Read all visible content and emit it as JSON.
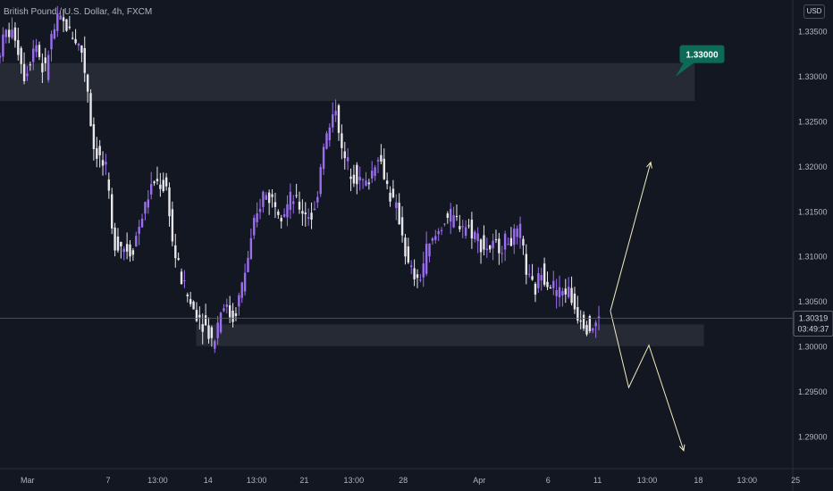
{
  "header": {
    "symbol": "British Pound / U.S. Dollar, 4h, FXCM",
    "currency": "USD"
  },
  "colors": {
    "background": "#131722",
    "up": "#9b6ef0",
    "down": "#e8e8ec",
    "zone": "#363a45",
    "projection": "#f0ecc0",
    "callout": "#0b6b56",
    "price_line": "#5d606b"
  },
  "chart_data": {
    "type": "candlestick",
    "title": "",
    "xlabel": "",
    "ylabel": "",
    "ylim": [
      1.2865,
      1.3385
    ],
    "x_range": [
      0,
      865
    ],
    "grid": false,
    "y_ticks": [
      {
        "v": 1.335,
        "label": "1.33500"
      },
      {
        "v": 1.33,
        "label": "1.33000"
      },
      {
        "v": 1.325,
        "label": "1.32500"
      },
      {
        "v": 1.32,
        "label": "1.32000"
      },
      {
        "v": 1.315,
        "label": "1.31500"
      },
      {
        "v": 1.31,
        "label": "1.31000"
      },
      {
        "v": 1.305,
        "label": "1.30500"
      },
      {
        "v": 1.3,
        "label": "1.30000"
      },
      {
        "v": 1.295,
        "label": "1.29500"
      },
      {
        "v": 1.29,
        "label": "1.29000"
      }
    ],
    "x_ticks": [
      {
        "t": 30,
        "label": "Mar"
      },
      {
        "t": 118,
        "label": "7"
      },
      {
        "t": 172,
        "label": "13:00"
      },
      {
        "t": 227,
        "label": "14"
      },
      {
        "t": 280,
        "label": "13:00"
      },
      {
        "t": 332,
        "label": "21"
      },
      {
        "t": 386,
        "label": "13:00"
      },
      {
        "t": 440,
        "label": "28"
      },
      {
        "t": 523,
        "label": "Apr"
      },
      {
        "t": 598,
        "label": "6"
      },
      {
        "t": 652,
        "label": "11"
      },
      {
        "t": 706,
        "label": "13:00"
      },
      {
        "t": 762,
        "label": "18"
      },
      {
        "t": 815,
        "label": "13:00"
      },
      {
        "t": 868,
        "label": "25"
      }
    ],
    "anchors": [
      [
        0,
        1.332,
        1.336
      ],
      [
        10,
        1.335,
        1.337
      ],
      [
        20,
        1.3345,
        1.3355
      ],
      [
        30,
        1.33,
        1.331
      ],
      [
        42,
        1.334,
        1.336
      ],
      [
        52,
        1.33,
        1.328
      ],
      [
        58,
        1.334,
        1.336
      ],
      [
        68,
        1.3365,
        1.337
      ],
      [
        80,
        1.335,
        1.3355
      ],
      [
        92,
        1.333,
        1.334
      ],
      [
        100,
        1.328,
        1.329
      ],
      [
        104,
        1.3225,
        1.322
      ],
      [
        112,
        1.321,
        1.321
      ],
      [
        120,
        1.319,
        1.32
      ],
      [
        126,
        1.312,
        1.311
      ],
      [
        134,
        1.3115,
        1.311
      ],
      [
        146,
        1.3105,
        1.31
      ],
      [
        154,
        1.313,
        1.312
      ],
      [
        164,
        1.3165,
        1.316
      ],
      [
        172,
        1.3185,
        1.319
      ],
      [
        186,
        1.3175,
        1.318
      ],
      [
        192,
        1.311,
        1.309
      ],
      [
        200,
        1.308,
        1.308
      ],
      [
        212,
        1.3045,
        1.3035
      ],
      [
        224,
        1.303,
        1.3015
      ],
      [
        236,
        1.3005,
        1.3
      ],
      [
        246,
        1.305,
        1.304
      ],
      [
        258,
        1.303,
        1.3025
      ],
      [
        270,
        1.308,
        1.309
      ],
      [
        280,
        1.313,
        1.314
      ],
      [
        290,
        1.317,
        1.318
      ],
      [
        300,
        1.3165,
        1.316
      ],
      [
        312,
        1.315,
        1.3145
      ],
      [
        322,
        1.3165,
        1.3175
      ],
      [
        334,
        1.315,
        1.315
      ],
      [
        346,
        1.3145,
        1.314
      ],
      [
        356,
        1.3225,
        1.324
      ],
      [
        364,
        1.3245,
        1.3255
      ],
      [
        370,
        1.327,
        1.328
      ],
      [
        376,
        1.3215,
        1.32
      ],
      [
        384,
        1.32,
        1.3195
      ],
      [
        396,
        1.3185,
        1.318
      ],
      [
        404,
        1.318,
        1.317
      ],
      [
        416,
        1.3215,
        1.322
      ],
      [
        424,
        1.3185,
        1.317
      ],
      [
        432,
        1.316,
        1.315
      ],
      [
        440,
        1.314,
        1.312
      ],
      [
        448,
        1.309,
        1.3085
      ],
      [
        460,
        1.307,
        1.306
      ],
      [
        468,
        1.3105,
        1.31
      ],
      [
        480,
        1.3125,
        1.3135
      ],
      [
        490,
        1.3145,
        1.315
      ],
      [
        500,
        1.314,
        1.313
      ],
      [
        512,
        1.3135,
        1.313
      ],
      [
        522,
        1.3125,
        1.3115
      ],
      [
        532,
        1.311,
        1.3105
      ],
      [
        542,
        1.311,
        1.3115
      ],
      [
        552,
        1.3115,
        1.3115
      ],
      [
        562,
        1.312,
        1.3125
      ],
      [
        572,
        1.3125,
        1.313
      ],
      [
        578,
        1.308,
        1.307
      ],
      [
        586,
        1.306,
        1.3055
      ],
      [
        594,
        1.3085,
        1.309
      ],
      [
        604,
        1.307,
        1.306
      ],
      [
        614,
        1.306,
        1.3065
      ],
      [
        622,
        1.3065,
        1.306
      ],
      [
        632,
        1.304,
        1.303
      ],
      [
        640,
        1.303,
        1.3015
      ],
      [
        648,
        1.302,
        1.3025
      ],
      [
        656,
        1.303,
        1.3032
      ]
    ],
    "zones": [
      {
        "x0": 0,
        "x1": 758,
        "y0": 1.3273,
        "y1": 1.3315
      },
      {
        "x0": 214,
        "x1": 768,
        "y0": 1.3001,
        "y1": 1.3025
      }
    ],
    "projection_up": [
      [
        666,
        1.304
      ],
      [
        710,
        1.3205
      ]
    ],
    "projection_down": [
      [
        666,
        1.304
      ],
      [
        686,
        1.2955
      ],
      [
        708,
        1.3002
      ],
      [
        746,
        1.2885
      ]
    ],
    "callout": {
      "label": "1.33000",
      "x": 766,
      "y": 1.3325,
      "ptr_x": 737,
      "ptr_y": 1.33
    },
    "current_price": {
      "value": 1.30319,
      "label": "1.30319",
      "countdown": "03:49:37"
    }
  }
}
